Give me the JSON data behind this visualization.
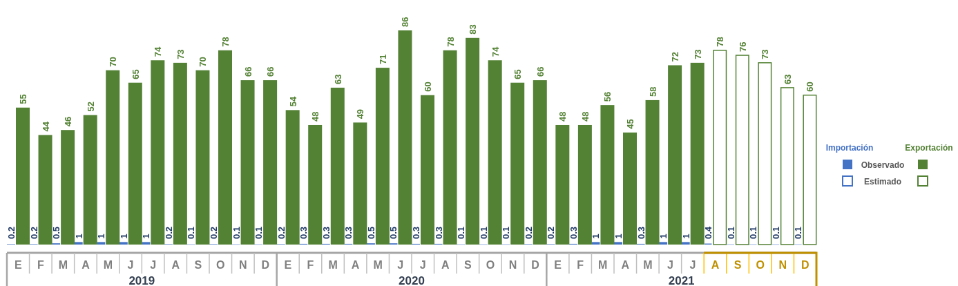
{
  "chart_data": {
    "type": "bar",
    "data_labels": true,
    "legend": "right",
    "categories": [
      "E",
      "F",
      "M",
      "A",
      "M",
      "J",
      "J",
      "A",
      "S",
      "O",
      "N",
      "D",
      "E",
      "F",
      "M",
      "A",
      "M",
      "J",
      "J",
      "A",
      "S",
      "O",
      "N",
      "D",
      "E",
      "F",
      "M",
      "A",
      "M",
      "J",
      "J",
      "A",
      "S",
      "O",
      "N",
      "D"
    ],
    "annotations": [
      "Importación",
      "Exportación",
      "2019",
      "2020",
      "2021"
    ],
    "series": [
      {
        "name": "Observado",
        "color": "#4472c4",
        "values": [
          0.2,
          0.2,
          0.5,
          1,
          1,
          1,
          1,
          0.2,
          0.1,
          0.2,
          0.1,
          0.1,
          0.2,
          0.3,
          0.3,
          0.3,
          0.5,
          0.5,
          0.3,
          0.3,
          0.1,
          0.1,
          0.1,
          0.2,
          0.2,
          0.3,
          1,
          1,
          0.3,
          1,
          1,
          null,
          null,
          null,
          null,
          null
        ]
      },
      {
        "name": "Estimado",
        "color": "#4472c4",
        "values": [
          null,
          null,
          null,
          null,
          null,
          null,
          null,
          null,
          null,
          null,
          null,
          null,
          null,
          null,
          null,
          null,
          null,
          null,
          null,
          null,
          null,
          null,
          null,
          null,
          null,
          null,
          null,
          null,
          null,
          null,
          null,
          0.4,
          0.1,
          0.1,
          0.1,
          0.1
        ]
      },
      {
        "color": "#548235",
        "values": [
          55,
          44,
          46,
          52,
          70,
          65,
          74,
          73,
          70,
          78,
          66,
          66,
          54,
          48,
          63,
          49,
          71,
          86,
          60,
          78,
          83,
          74,
          65,
          66,
          48,
          48,
          56,
          45,
          58,
          72,
          73,
          null,
          null,
          null,
          null,
          null
        ]
      },
      {
        "color": "#548235",
        "values": [
          null,
          null,
          null,
          null,
          null,
          null,
          null,
          null,
          null,
          null,
          null,
          null,
          null,
          null,
          null,
          null,
          null,
          null,
          null,
          null,
          null,
          null,
          null,
          null,
          null,
          null,
          null,
          null,
          null,
          null,
          null,
          78,
          76,
          73,
          63,
          60
        ]
      }
    ]
  }
}
